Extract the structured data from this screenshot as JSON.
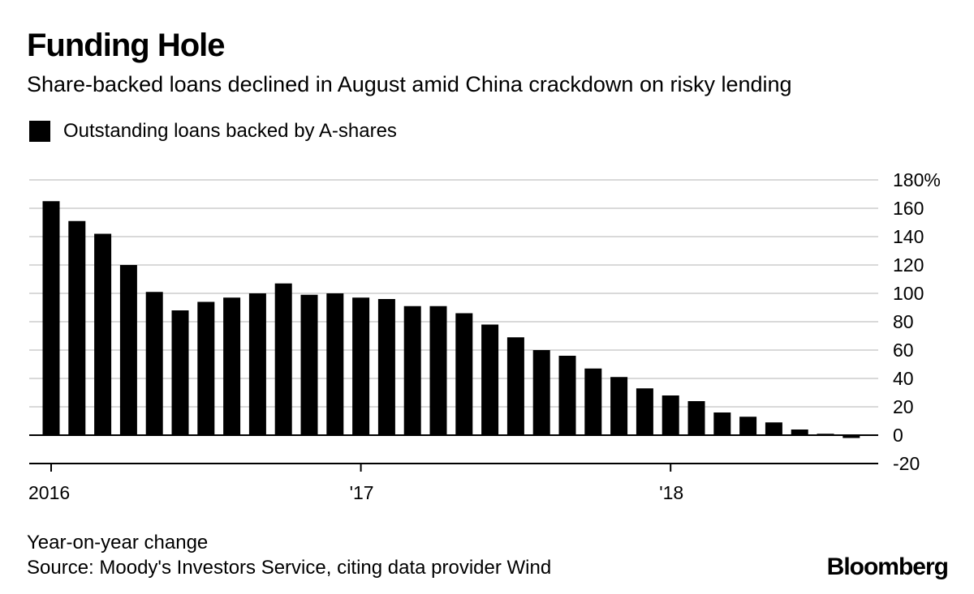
{
  "chart_data": {
    "type": "bar",
    "title": "Funding Hole",
    "subtitle": "Share-backed loans declined in August amid China crackdown on risky lending",
    "legend": [
      {
        "label": "Outstanding loans backed by A-shares",
        "color": "#000000"
      }
    ],
    "legend_position": "top-left",
    "series": [
      {
        "name": "Outstanding loans backed by A-shares",
        "values": [
          165,
          151,
          142,
          120,
          101,
          88,
          94,
          97,
          100,
          107,
          99,
          100,
          97,
          96,
          91,
          91,
          86,
          78,
          69,
          60,
          56,
          47,
          41,
          33,
          28,
          24,
          16,
          13,
          9,
          4,
          1,
          -2
        ]
      }
    ],
    "x_ticks": [
      {
        "index": 0,
        "label": "2016"
      },
      {
        "index": 12,
        "label": "'17"
      },
      {
        "index": 24,
        "label": "'18"
      }
    ],
    "y_ticks": [
      "180%",
      "160",
      "140",
      "120",
      "100",
      "80",
      "60",
      "40",
      "20",
      "0",
      "-20"
    ],
    "y_tick_values": [
      180,
      160,
      140,
      120,
      100,
      80,
      60,
      40,
      20,
      0,
      -20
    ],
    "ylim": [
      -20,
      180
    ],
    "xlabel": "",
    "ylabel": "",
    "grid": true,
    "note": "Year-on-year change",
    "source": "Source: Moody's Investors Service, citing data provider Wind",
    "brand": "Bloomberg"
  },
  "colors": {
    "bar": "#000000",
    "grid": "#d9d9d9",
    "zero_line": "#000000"
  }
}
